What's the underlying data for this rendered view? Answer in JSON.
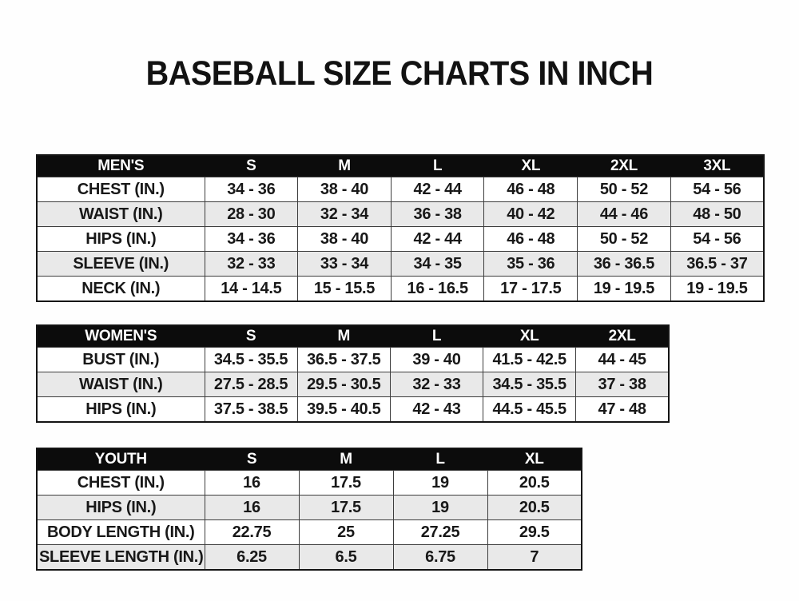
{
  "title": "BASEBALL SIZE CHARTS IN INCH",
  "colors": {
    "header_bg": "#0c0c0c",
    "header_text": "#ffffff",
    "row_bg": "#ffffff",
    "row_alt_bg": "#e9e9e9",
    "border": "#3d3d3d",
    "text": "#181818",
    "page_bg": "#fefefe"
  },
  "tables": [
    {
      "id": "mens",
      "header": [
        "MEN'S",
        "S",
        "M",
        "L",
        "XL",
        "2XL",
        "3XL"
      ],
      "rows": [
        [
          "CHEST (IN.)",
          "34 - 36",
          "38 - 40",
          "42 - 44",
          "46 - 48",
          "50 - 52",
          "54 - 56"
        ],
        [
          "WAIST (IN.)",
          "28 - 30",
          "32 - 34",
          "36 - 38",
          "40 - 42",
          "44 - 46",
          "48 - 50"
        ],
        [
          "HIPS (IN.)",
          "34 - 36",
          "38 - 40",
          "42 - 44",
          "46 - 48",
          "50 - 52",
          "54 - 56"
        ],
        [
          "SLEEVE (IN.)",
          "32 - 33",
          "33 - 34",
          "34 - 35",
          "35 - 36",
          "36 - 36.5",
          "36.5 - 37"
        ],
        [
          "NECK (IN.)",
          "14 - 14.5",
          "15 - 15.5",
          "16 - 16.5",
          "17 - 17.5",
          "19 - 19.5",
          "19 - 19.5"
        ]
      ]
    },
    {
      "id": "womens",
      "header": [
        "WOMEN'S",
        "S",
        "M",
        "L",
        "XL",
        "2XL"
      ],
      "rows": [
        [
          "BUST (IN.)",
          "34.5 - 35.5",
          "36.5 - 37.5",
          "39 - 40",
          "41.5 - 42.5",
          "44 - 45"
        ],
        [
          "WAIST (IN.)",
          "27.5 - 28.5",
          "29.5 - 30.5",
          "32 - 33",
          "34.5 - 35.5",
          "37 - 38"
        ],
        [
          "HIPS (IN.)",
          "37.5 - 38.5",
          "39.5 - 40.5",
          "42 - 43",
          "44.5 - 45.5",
          "47 - 48"
        ]
      ]
    },
    {
      "id": "youth",
      "header": [
        "YOUTH",
        "S",
        "M",
        "L",
        "XL"
      ],
      "rows": [
        [
          "CHEST (IN.)",
          "16",
          "17.5",
          "19",
          "20.5"
        ],
        [
          "HIPS (IN.)",
          "16",
          "17.5",
          "19",
          "20.5"
        ],
        [
          "BODY LENGTH (IN.)",
          "22.75",
          "25",
          "27.25",
          "29.5"
        ],
        [
          "SLEEVE LENGTH (IN.)",
          "6.25",
          "6.5",
          "6.75",
          "7"
        ]
      ]
    }
  ]
}
